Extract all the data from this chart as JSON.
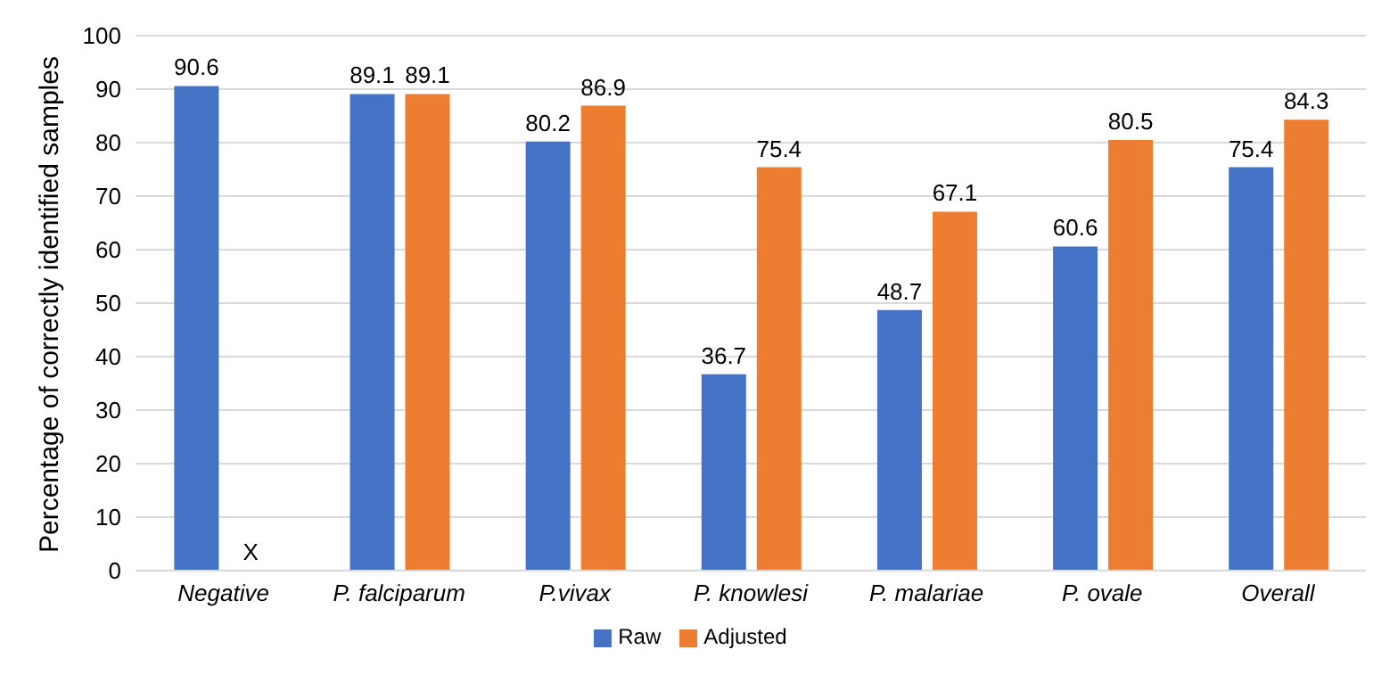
{
  "chart_data": {
    "type": "bar",
    "ylabel": "Percentage of correctly identified samples",
    "categories": [
      "Negative",
      "P. falciparum",
      "P.vivax",
      "P. knowlesi",
      "P. malariae",
      "P. ovale",
      "Overall"
    ],
    "series": [
      {
        "name": "Raw",
        "color": "#4472c4",
        "values": [
          90.6,
          89.1,
          80.2,
          36.7,
          48.7,
          60.6,
          75.4
        ],
        "value_labels": [
          "90.6",
          "89.1",
          "80.2",
          "36.7",
          "48.7",
          "60.6",
          "75.4"
        ]
      },
      {
        "name": "Adjusted",
        "color": "#ed7d31",
        "values": [
          null,
          89.1,
          86.9,
          75.4,
          67.1,
          80.5,
          84.3
        ],
        "value_labels": [
          "X",
          "89.1",
          "86.9",
          "75.4",
          "67.1",
          "80.5",
          "84.3"
        ]
      }
    ],
    "ylim": [
      0,
      100
    ],
    "yticks": [
      0,
      10,
      20,
      30,
      40,
      50,
      60,
      70,
      80,
      90,
      100
    ],
    "grid": "y",
    "legend": "bottom"
  }
}
